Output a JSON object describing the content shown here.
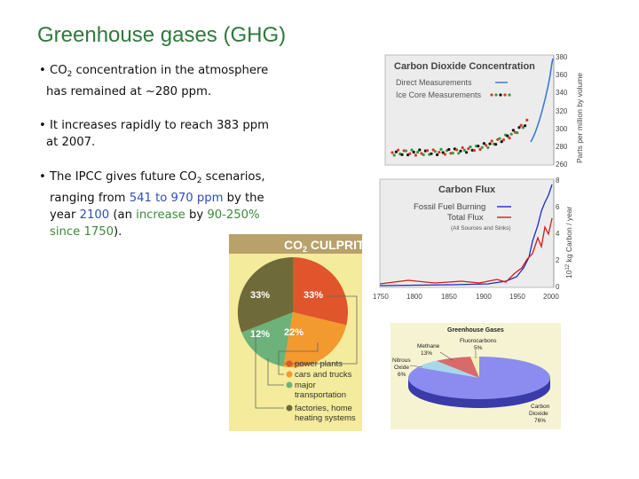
{
  "slide": {
    "title": "Greenhouse gases (GHG)",
    "bullet1": {
      "a": "CO",
      "sub": "2",
      "b": " concentration in the atmosphere",
      "c": "has remained at ~280 ppm."
    },
    "bullet2": {
      "a": "It increases rapidly to reach 383 ppm",
      "b": "at 2007."
    },
    "bullet3": {
      "a": "The IPCC gives future CO",
      "sub": "2",
      "b": " scenarios,",
      "c": "ranging from ",
      "low": "541",
      "to": " to ",
      "high": "970 ppm",
      "d": " by the",
      "e": "year ",
      "year": "2100",
      "f": " (an ",
      "inc": "increase",
      "g": " by ",
      "range": "90-250%",
      "since": "since 1750",
      "h": ")."
    }
  },
  "co2_chart": {
    "title": "Carbon Dioxide Concentration",
    "legend_direct": "Direct Measurements",
    "legend_ice": "Ice Core Measurements",
    "ylabel": "Parts per million by volume",
    "yticks": [
      "380",
      "360",
      "340",
      "320",
      "300",
      "280",
      "260"
    ],
    "colors": {
      "direct": "#3b7bd6",
      "ice_red": "#d83a2a",
      "ice_green": "#3a9a3a",
      "ice_black": "#111111"
    }
  },
  "flux_chart": {
    "title": "Carbon Flux",
    "legend_fossil": "Fossil Fuel Burning",
    "legend_total": "Total Flux",
    "legend_note": "(All Sources and Sinks)",
    "ylabel_a": "10",
    "ylabel_sup": "12",
    "ylabel_b": " kg Carbon / year",
    "yticks": [
      "8",
      "6",
      "4",
      "2",
      "0"
    ],
    "xticks": [
      "1750",
      "1800",
      "1850",
      "1900",
      "1950",
      "2000"
    ],
    "colors": {
      "fossil": "#1a2ad0",
      "total": "#d81a1a"
    }
  },
  "culprits": {
    "title_a": "CO",
    "title_sub": "2",
    "title_b": " CULPRITS",
    "slice_labels": [
      "33%",
      "33%",
      "12%",
      "22%"
    ],
    "legend": [
      "power plants",
      "cars and trucks",
      "major",
      "transportation",
      "factories, home",
      "heating systems"
    ],
    "colors": {
      "power": "#e0552b",
      "cars": "#f29a2e",
      "transport": "#6cb27a",
      "factories": "#6f6a3a"
    }
  },
  "ghg_pie": {
    "title": "Greenhouse Gases",
    "labels": {
      "fluoro": "Fluorocarbons",
      "fluoro_val": "5%",
      "methane": "Methane",
      "methane_val": "13%",
      "nitrous_a": "Nitrous",
      "nitrous_b": "Oxide",
      "nitrous_val": "6%",
      "co2_a": "Carbon",
      "co2_b": "Dioxide",
      "co2_val": "76%"
    }
  }
}
